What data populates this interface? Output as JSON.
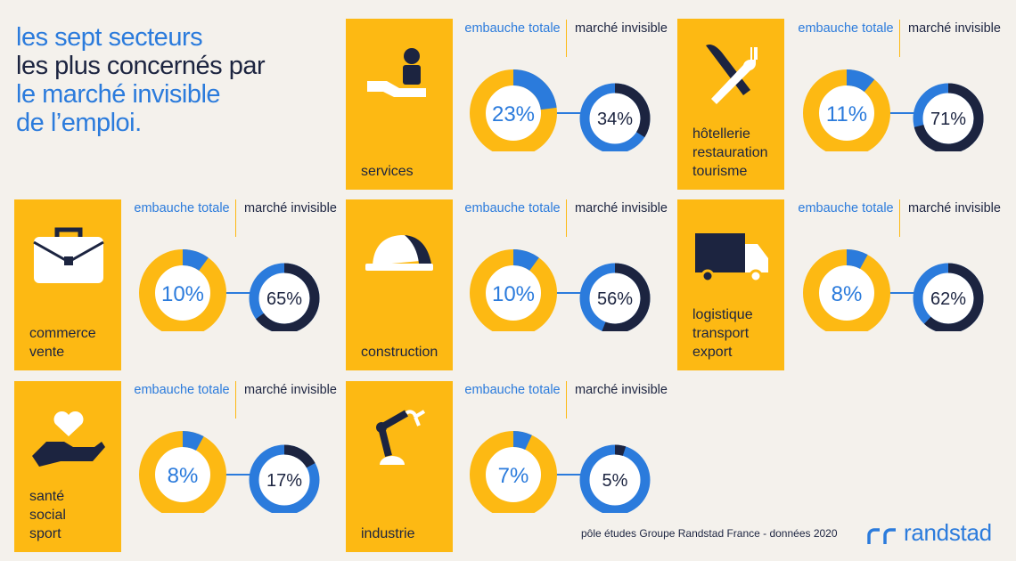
{
  "title": {
    "line1": "les sept secteurs",
    "line2": "les plus concernés par",
    "line3": "le marché invisible",
    "line4": "de l’emploi."
  },
  "headers": {
    "total": "embauche totale",
    "invisible": "marché invisible"
  },
  "colors": {
    "yellow": "#fdb913",
    "blue": "#2b7bdc",
    "navy": "#1c2440",
    "background": "#f4f1ec"
  },
  "sectors": [
    {
      "label_lines": [
        "services"
      ],
      "icon": "hand-person-icon",
      "embauche_totale": 23,
      "marche_invisible": 34,
      "embauche_totale_label": "23%",
      "marche_invisible_label": "34%"
    },
    {
      "label_lines": [
        "hôtellerie",
        "restauration",
        "tourisme"
      ],
      "icon": "knife-fork-icon",
      "embauche_totale": 11,
      "marche_invisible": 71,
      "embauche_totale_label": "11%",
      "marche_invisible_label": "71%"
    },
    {
      "label_lines": [
        "commerce",
        "vente"
      ],
      "icon": "briefcase-icon",
      "embauche_totale": 10,
      "marche_invisible": 65,
      "embauche_totale_label": "10%",
      "marche_invisible_label": "65%"
    },
    {
      "label_lines": [
        "construction"
      ],
      "icon": "hard-hat-icon",
      "embauche_totale": 10,
      "marche_invisible": 56,
      "embauche_totale_label": "10%",
      "marche_invisible_label": "56%"
    },
    {
      "label_lines": [
        "logistique",
        "transport",
        "export"
      ],
      "icon": "truck-icon",
      "embauche_totale": 8,
      "marche_invisible": 62,
      "embauche_totale_label": "8%",
      "marche_invisible_label": "62%"
    },
    {
      "label_lines": [
        "santé",
        "social",
        "sport"
      ],
      "icon": "heart-hand-icon",
      "embauche_totale": 8,
      "marche_invisible": 17,
      "embauche_totale_label": "8%",
      "marche_invisible_label": "17%"
    },
    {
      "label_lines": [
        "industrie"
      ],
      "icon": "robot-arm-icon",
      "embauche_totale": 7,
      "marche_invisible": 5,
      "embauche_totale_label": "7%",
      "marche_invisible_label": "5%"
    }
  ],
  "footer": "pôle études Groupe Randstad France - données 2020",
  "logo": "randstad"
}
